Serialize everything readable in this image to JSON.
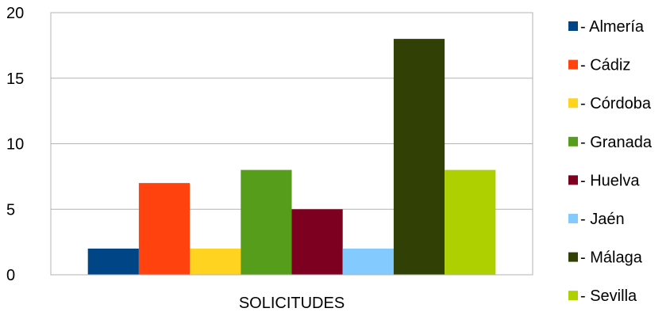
{
  "chart_data": {
    "type": "bar",
    "categories": [
      "SOLICITUDES"
    ],
    "xlabel": "SOLICITUDES",
    "ylim": [
      0,
      20
    ],
    "yticks": [
      0,
      5,
      10,
      15,
      20
    ],
    "grid": true,
    "legend_position": "right",
    "series": [
      {
        "name": "- Almería",
        "values": [
          2
        ],
        "color": "#004586"
      },
      {
        "name": "- Cádiz",
        "values": [
          7
        ],
        "color": "#ff420e"
      },
      {
        "name": "- Córdoba",
        "values": [
          2
        ],
        "color": "#ffd320"
      },
      {
        "name": "- Granada",
        "values": [
          8
        ],
        "color": "#579d1c"
      },
      {
        "name": "- Huelva",
        "values": [
          5
        ],
        "color": "#7e0021"
      },
      {
        "name": "- Jaén",
        "values": [
          2
        ],
        "color": "#83caff"
      },
      {
        "name": "- Málaga",
        "values": [
          18
        ],
        "color": "#314004"
      },
      {
        "name": "- Sevilla",
        "values": [
          8
        ],
        "color": "#aecf00"
      }
    ]
  }
}
